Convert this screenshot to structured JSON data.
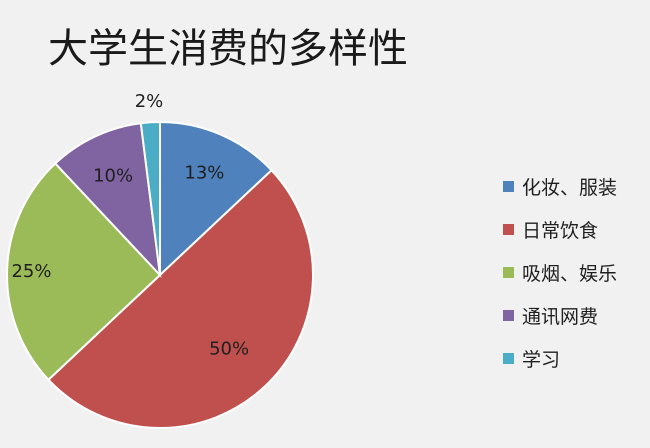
{
  "chart_data": {
    "type": "pie",
    "title": "大学生消费的多样性",
    "categories": [
      "化妆、服装",
      "日常饮食",
      "吸烟、娱乐",
      "通讯网费",
      "学习"
    ],
    "values": [
      13,
      50,
      25,
      10,
      2
    ],
    "value_labels": [
      "13%",
      "50%",
      "25%",
      "10%",
      "2%"
    ],
    "colors": [
      "#4f81bd",
      "#c0504d",
      "#9bbb59",
      "#8064a2",
      "#4bacc6"
    ],
    "start_angle_deg": 0,
    "direction": "clockwise",
    "legend_position": "right"
  }
}
